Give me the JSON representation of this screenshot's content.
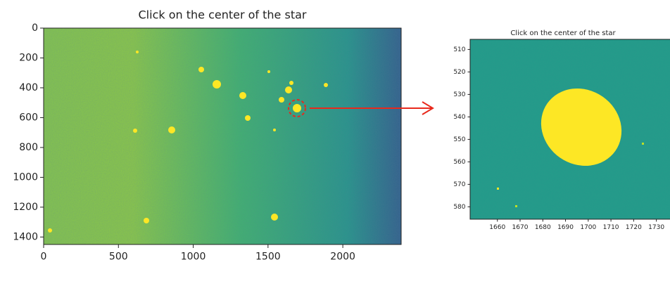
{
  "chart_data": [
    {
      "type": "image",
      "title": "Click on the center of the star",
      "xlim": [
        0,
        2390
      ],
      "ylim": [
        1450,
        0
      ],
      "xticks": [
        0,
        500,
        1000,
        1500,
        2000
      ],
      "yticks": [
        0,
        200,
        400,
        600,
        800,
        1000,
        1200,
        1400
      ]
    },
    {
      "type": "image",
      "title": "Click on the center of the star",
      "xlim": [
        1648,
        1736
      ],
      "ylim": [
        585.5,
        505.5
      ],
      "xticks": [
        1660,
        1670,
        1680,
        1690,
        1700,
        1710,
        1720,
        1730
      ],
      "yticks": [
        510,
        520,
        530,
        540,
        550,
        560,
        570,
        580
      ]
    }
  ]
}
